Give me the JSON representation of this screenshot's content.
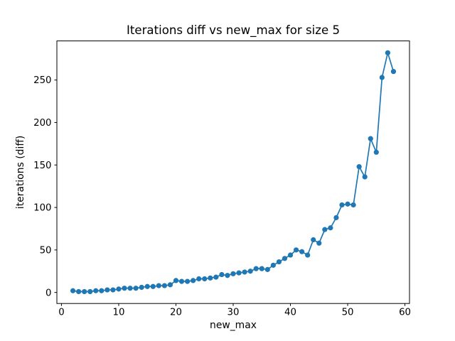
{
  "chart_data": {
    "type": "line",
    "title": "Iterations diff vs new_max for size 5",
    "xlabel": "new_max",
    "ylabel": "iterations (diff)",
    "x": [
      2,
      3,
      4,
      5,
      6,
      7,
      8,
      9,
      10,
      11,
      12,
      13,
      14,
      15,
      16,
      17,
      18,
      19,
      20,
      21,
      22,
      23,
      24,
      25,
      26,
      27,
      28,
      29,
      30,
      31,
      32,
      33,
      34,
      35,
      36,
      37,
      38,
      39,
      40,
      41,
      42,
      43,
      44,
      45,
      46,
      47,
      48,
      49,
      50,
      51,
      52,
      53,
      54,
      55,
      56,
      57,
      58
    ],
    "y": [
      2,
      1,
      1,
      1,
      2,
      2,
      3,
      3,
      4,
      5,
      5,
      5,
      6,
      7,
      7,
      8,
      8,
      9,
      14,
      13,
      13,
      14,
      16,
      16,
      17,
      18,
      21,
      20,
      22,
      23,
      24,
      25,
      28,
      28,
      27,
      32,
      36,
      40,
      44,
      50,
      48,
      44,
      62,
      58,
      74,
      76,
      88,
      103,
      104,
      103,
      148,
      136,
      181,
      165,
      253,
      282,
      260
    ],
    "xlim": [
      -0.8,
      60.8
    ],
    "ylim": [
      -13,
      296
    ],
    "xticks": [
      0,
      10,
      20,
      30,
      40,
      50,
      60
    ],
    "yticks": [
      0,
      50,
      100,
      150,
      200,
      250
    ],
    "line_color": "#1f77b4",
    "marker": "circle",
    "marker_size": 3.6,
    "grid": false,
    "legend": "none",
    "background_color": "#ffffff",
    "spine_color": "#000000"
  }
}
